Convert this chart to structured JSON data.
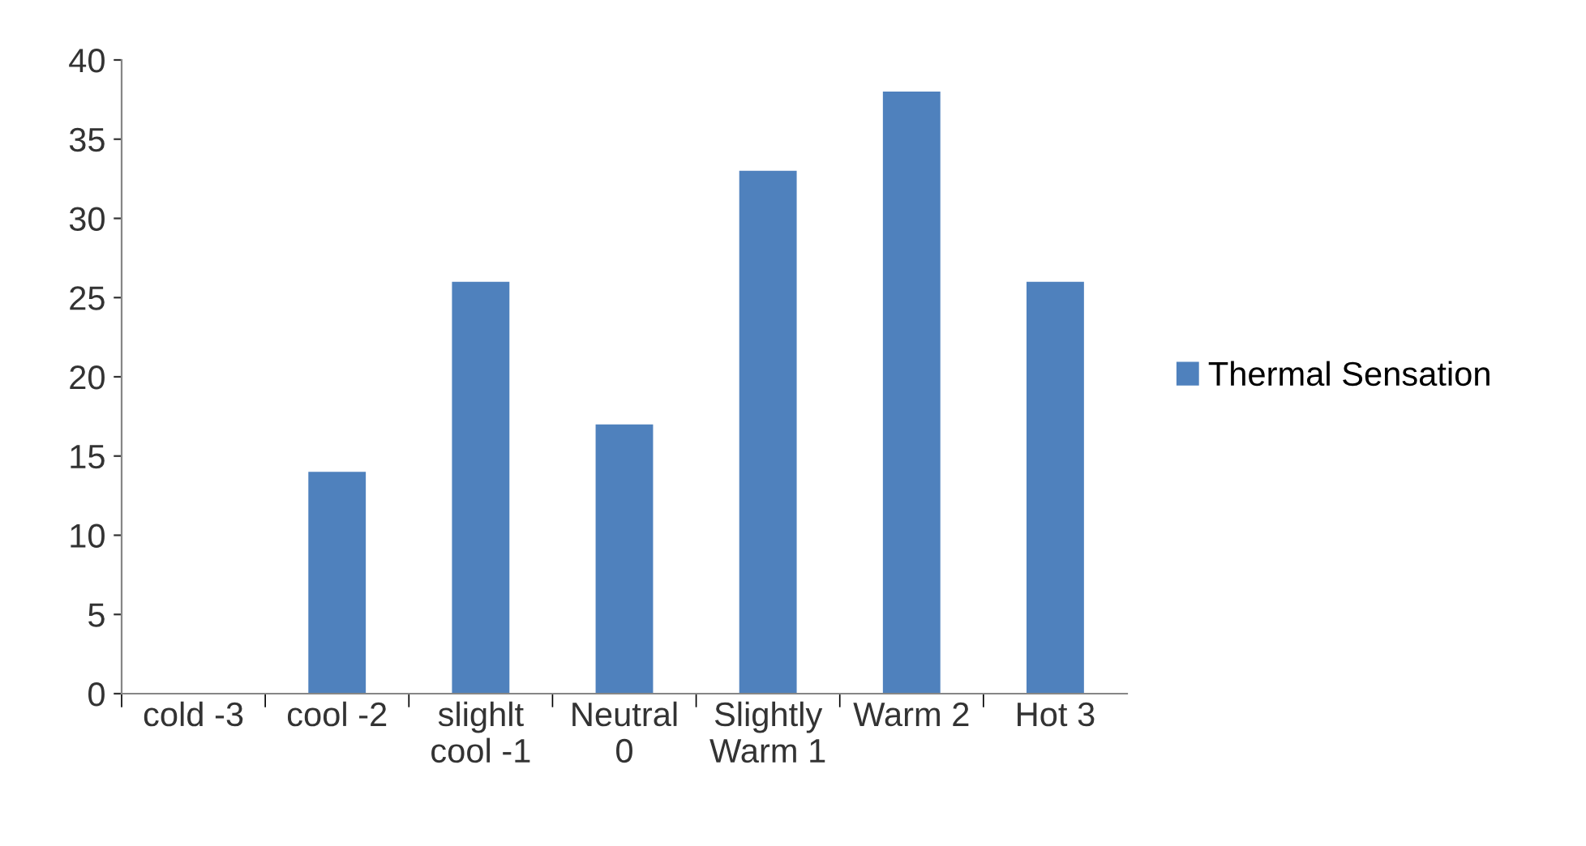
{
  "chart_data": {
    "type": "bar",
    "categories": [
      "cold -3",
      "cool -2",
      "slighlt\ncool -1",
      "Neutral\n0",
      "Slightly\nWarm 1",
      "Warm 2",
      "Hot 3"
    ],
    "series": [
      {
        "name": "Thermal Sensation",
        "color": "#4f81bd",
        "values": [
          0,
          14,
          26,
          17,
          33,
          38,
          26
        ]
      }
    ],
    "ylim": [
      0,
      40
    ],
    "yticks": [
      0,
      5,
      10,
      15,
      20,
      25,
      30,
      35,
      40
    ],
    "grid": false,
    "legend": "right"
  }
}
